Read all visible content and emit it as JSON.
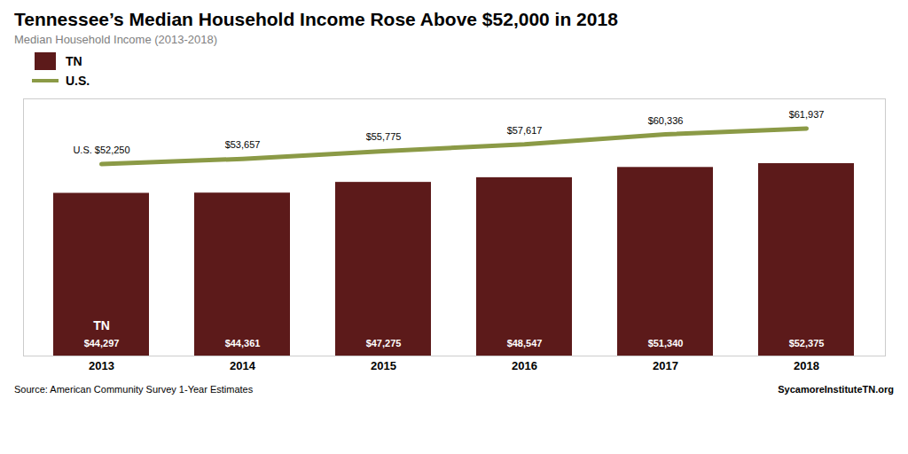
{
  "chart_data": {
    "type": "bar",
    "title": "Tennessee’s Median Household Income Rose Above $52,000 in 2018",
    "subtitle": "Median  Household  Income (2013-2018)",
    "categories": [
      "2013",
      "2014",
      "2015",
      "2016",
      "2017",
      "2018"
    ],
    "series": [
      {
        "name": "TN",
        "type": "bar",
        "color": "#5C1A1A",
        "values": [
          44297,
          44361,
          47275,
          48547,
          51340,
          52375
        ],
        "value_labels": [
          "$44,297",
          "$44,361",
          "$47,275",
          "$48,547",
          "$51,340",
          "$52,375"
        ]
      },
      {
        "name": "U.S.",
        "type": "line",
        "color": "#8B9A46",
        "values": [
          52250,
          53657,
          55775,
          57617,
          60336,
          61937
        ],
        "value_labels": [
          "U.S. $52,250",
          "$53,657",
          "$55,775",
          "$57,617",
          "$60,336",
          "$61,937"
        ]
      }
    ],
    "annotations": [
      {
        "text": "TN",
        "x": "2013"
      }
    ],
    "ylim": [
      0,
      70000
    ],
    "tick_labels": "x",
    "grid": false,
    "legend": "top-left",
    "data_labels": true,
    "source": "Source: American Community Survey 1-Year Estimates",
    "credit": "SycamoreInstituteTN.org"
  }
}
